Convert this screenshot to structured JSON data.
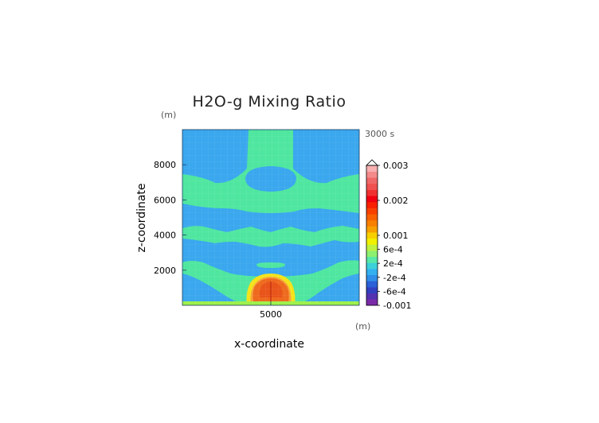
{
  "chart_data": {
    "type": "heatmap",
    "title": "H2O-g Mixing Ratio",
    "time_label": "3000 s",
    "xlabel": "x-coordinate",
    "ylabel": "z-coordinate",
    "x_unit": "(m)",
    "y_unit": "(m)",
    "xlim": [
      0,
      10000
    ],
    "ylim": [
      0,
      10000
    ],
    "x_ticks": [
      {
        "value": 5000,
        "label": "5000"
      }
    ],
    "y_ticks": [
      {
        "value": 2000,
        "label": "2000"
      },
      {
        "value": 4000,
        "label": "4000"
      },
      {
        "value": 6000,
        "label": "6000"
      },
      {
        "value": 8000,
        "label": "8000"
      }
    ],
    "colorbar": {
      "min": -0.001,
      "max": 0.003,
      "extend": "max",
      "colors": [
        "#7a2aa8",
        "#5232b0",
        "#3140c0",
        "#2a60d8",
        "#2f8ee8",
        "#33b0f0",
        "#3cd0d8",
        "#58e8a8",
        "#8ef070",
        "#c0f040",
        "#f0f000",
        "#f8d000",
        "#f8a000",
        "#f88000",
        "#f86000",
        "#f84000",
        "#f82000",
        "#f00010",
        "#f03030",
        "#f05050",
        "#f06868",
        "#f48a8a",
        "#f8b0b0"
      ],
      "labels": [
        {
          "value": 0.003,
          "label": "0.003"
        },
        {
          "value": 0.002,
          "label": "0.002"
        },
        {
          "value": 0.001,
          "label": "0.001"
        },
        {
          "value": 0.0006,
          "label": "6e-4"
        },
        {
          "value": 0.0002,
          "label": "2e-4"
        },
        {
          "value": -0.0002,
          "label": "-2e-4"
        },
        {
          "value": -0.0006,
          "label": "-6e-4"
        },
        {
          "value": -0.001,
          "label": "-0.001"
        }
      ]
    },
    "field_colors": {
      "background": "#3aa7ee",
      "band": "#4fe6a0",
      "warm_edge": "#f4e21a",
      "warm_mid": "#f6a33a",
      "core": "#ee6a1e",
      "core_center": "#e8541a",
      "surface_layer": "#9ef04a"
    },
    "grid": true
  }
}
